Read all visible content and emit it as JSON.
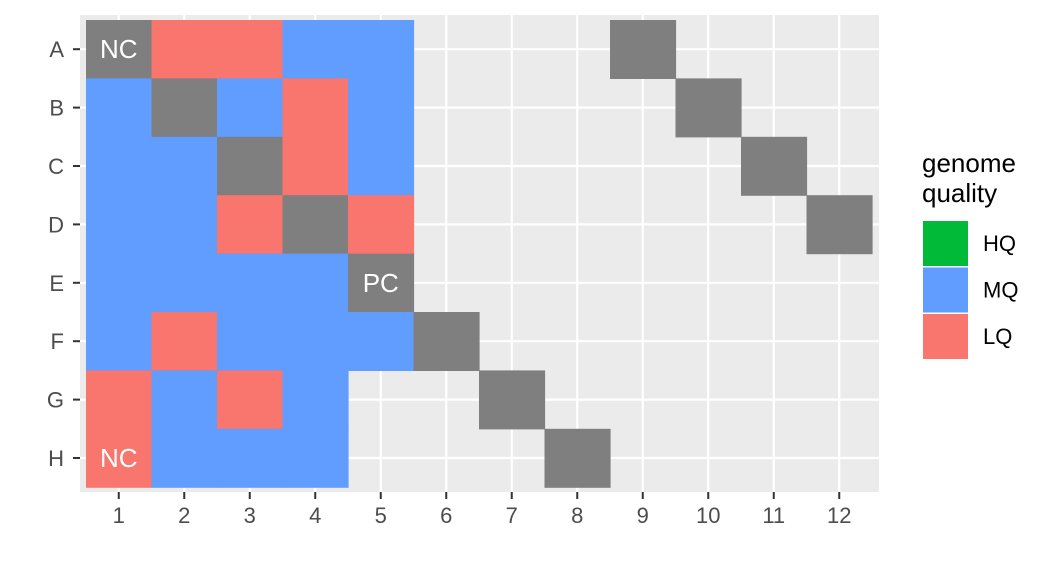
{
  "chart_data": {
    "type": "heatmap",
    "x_categories": [
      "1",
      "2",
      "3",
      "4",
      "5",
      "6",
      "7",
      "8",
      "9",
      "10",
      "11",
      "12"
    ],
    "y_categories": [
      "A",
      "B",
      "C",
      "D",
      "E",
      "F",
      "G",
      "H"
    ],
    "status_colors": {
      "control": "#7f7f7f",
      "HQ": "#00ba38",
      "MQ": "#619cff",
      "LQ": "#f8766d"
    },
    "cells": [
      {
        "row": "A",
        "col": "1",
        "status": "control",
        "label": "NC"
      },
      {
        "row": "A",
        "col": "2",
        "status": "LQ"
      },
      {
        "row": "A",
        "col": "3",
        "status": "LQ"
      },
      {
        "row": "A",
        "col": "4",
        "status": "MQ"
      },
      {
        "row": "A",
        "col": "5",
        "status": "MQ"
      },
      {
        "row": "A",
        "col": "9",
        "status": "control"
      },
      {
        "row": "B",
        "col": "1",
        "status": "MQ"
      },
      {
        "row": "B",
        "col": "2",
        "status": "control"
      },
      {
        "row": "B",
        "col": "3",
        "status": "MQ"
      },
      {
        "row": "B",
        "col": "4",
        "status": "LQ"
      },
      {
        "row": "B",
        "col": "5",
        "status": "MQ"
      },
      {
        "row": "B",
        "col": "10",
        "status": "control"
      },
      {
        "row": "C",
        "col": "1",
        "status": "MQ"
      },
      {
        "row": "C",
        "col": "2",
        "status": "MQ"
      },
      {
        "row": "C",
        "col": "3",
        "status": "control"
      },
      {
        "row": "C",
        "col": "4",
        "status": "LQ"
      },
      {
        "row": "C",
        "col": "5",
        "status": "MQ"
      },
      {
        "row": "C",
        "col": "11",
        "status": "control"
      },
      {
        "row": "D",
        "col": "1",
        "status": "MQ"
      },
      {
        "row": "D",
        "col": "2",
        "status": "MQ"
      },
      {
        "row": "D",
        "col": "3",
        "status": "LQ"
      },
      {
        "row": "D",
        "col": "4",
        "status": "control"
      },
      {
        "row": "D",
        "col": "5",
        "status": "LQ"
      },
      {
        "row": "D",
        "col": "12",
        "status": "control"
      },
      {
        "row": "E",
        "col": "1",
        "status": "MQ"
      },
      {
        "row": "E",
        "col": "2",
        "status": "MQ"
      },
      {
        "row": "E",
        "col": "3",
        "status": "MQ"
      },
      {
        "row": "E",
        "col": "4",
        "status": "MQ"
      },
      {
        "row": "E",
        "col": "5",
        "status": "control",
        "label": "PC"
      },
      {
        "row": "F",
        "col": "1",
        "status": "MQ"
      },
      {
        "row": "F",
        "col": "2",
        "status": "LQ"
      },
      {
        "row": "F",
        "col": "3",
        "status": "MQ"
      },
      {
        "row": "F",
        "col": "4",
        "status": "MQ"
      },
      {
        "row": "F",
        "col": "5",
        "status": "MQ"
      },
      {
        "row": "F",
        "col": "6",
        "status": "control"
      },
      {
        "row": "G",
        "col": "1",
        "status": "LQ"
      },
      {
        "row": "G",
        "col": "2",
        "status": "MQ"
      },
      {
        "row": "G",
        "col": "3",
        "status": "LQ"
      },
      {
        "row": "G",
        "col": "4",
        "status": "MQ"
      },
      {
        "row": "G",
        "col": "7",
        "status": "control"
      },
      {
        "row": "H",
        "col": "1",
        "status": "LQ",
        "label": "NC"
      },
      {
        "row": "H",
        "col": "2",
        "status": "MQ"
      },
      {
        "row": "H",
        "col": "3",
        "status": "MQ"
      },
      {
        "row": "H",
        "col": "4",
        "status": "MQ"
      },
      {
        "row": "H",
        "col": "8",
        "status": "control"
      }
    ],
    "legend": {
      "title_lines": [
        "genome",
        "quality"
      ],
      "placement": "right",
      "items": [
        {
          "label": "HQ",
          "color": "#00ba38"
        },
        {
          "label": "MQ",
          "color": "#619cff"
        },
        {
          "label": "LQ",
          "color": "#f8766d"
        }
      ]
    },
    "panel_background": "#ebebeb",
    "grid": true
  }
}
